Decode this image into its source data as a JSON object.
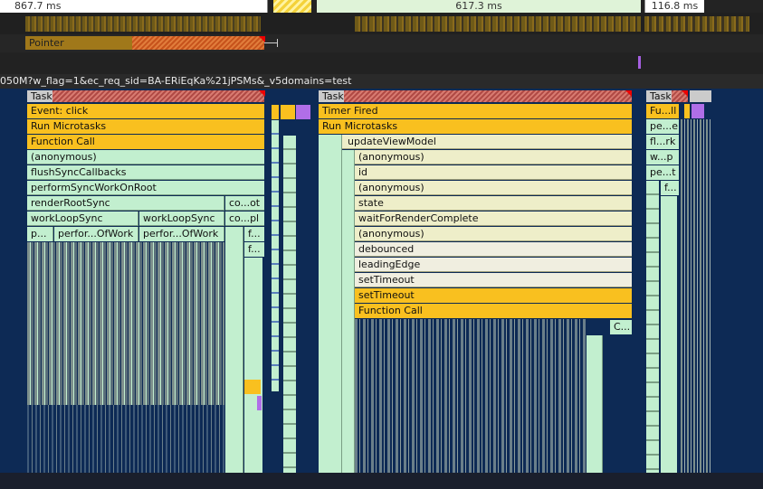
{
  "timings": {
    "segment_1": "867.7 ms",
    "segment_2": "617.3 ms",
    "segment_3": "116.8 ms"
  },
  "interaction": {
    "label": "Pointer"
  },
  "network": {
    "url_text": "050M?w_flag=1&ec_req_sid=BA-ERiEqKa%21jPSMs&_v5domains=test"
  },
  "flame_left": {
    "task": "Task",
    "event": "Event: click",
    "microtasks": "Run Microtasks",
    "function_call": "Function Call",
    "anonymous": "(anonymous)",
    "flush": "flushSyncCallbacks",
    "perform_root": "performSyncWorkOnRoot",
    "render_root": "renderRootSync",
    "render_root_side": "co...ot",
    "work_loop_a": "workLoopSync",
    "work_loop_b": "workLoopSync",
    "work_loop_side": "co...pl",
    "perf_p": "p...",
    "perf_a": "perfor...OfWork",
    "perf_b": "perfor...OfWork",
    "perf_side_f1": "f...",
    "perf_side_f2": "f..."
  },
  "flame_mid": {
    "task": "Task",
    "timer": "Timer Fired",
    "microtasks": "Run Microtasks",
    "update_view_model": "updateViewModel",
    "anonymous_1": "(anonymous)",
    "id": "id",
    "anonymous_2": "(anonymous)",
    "state": "state",
    "wait_for_render": "waitForRenderComplete",
    "anonymous_3": "(anonymous)",
    "debounced": "debounced",
    "leading_edge": "leadingEdge",
    "set_timeout_1": "setTimeout",
    "set_timeout_2": "setTimeout",
    "function_call": "Function Call",
    "side_c": "C..."
  },
  "flame_right": {
    "task": "Task",
    "fu": "Fu...ll",
    "pe_e": "pe...e",
    "fl_rk": "fl...rk",
    "w_p": "w...p",
    "pe_t": "pe...t",
    "f_dot": "f..."
  },
  "colors": {
    "background": "#0d2a55",
    "task_gray": "#c9c9c9",
    "event_orange": "#f9c01f",
    "script_green": "#c2efcf",
    "script_cream": "#eeeec9",
    "purple": "#b06ee8"
  }
}
